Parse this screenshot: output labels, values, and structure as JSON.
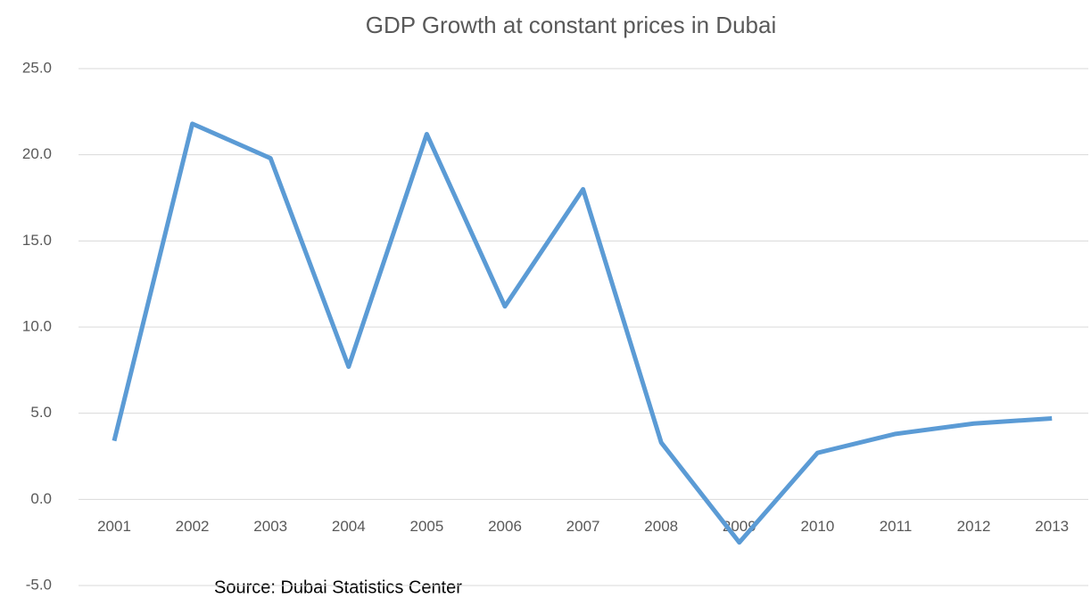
{
  "chart_data": {
    "type": "line",
    "title": "GDP Growth at constant prices in Dubai",
    "annotation": "Source: Dubai Statistics Center",
    "categories": [
      "2001",
      "2002",
      "2003",
      "2004",
      "2005",
      "2006",
      "2007",
      "2008",
      "2009",
      "2010",
      "2011",
      "2012",
      "2013"
    ],
    "series": [
      {
        "name": "GDP Growth",
        "color": "#5b9bd5",
        "values": [
          3.4,
          21.8,
          19.8,
          7.7,
          21.2,
          11.2,
          18.0,
          3.3,
          -2.5,
          2.7,
          3.8,
          4.4,
          4.7
        ]
      }
    ],
    "ylim": [
      -5,
      25
    ],
    "yticks": [
      {
        "value": -5,
        "label": "-5.0"
      },
      {
        "value": 0,
        "label": "0.0"
      },
      {
        "value": 5,
        "label": "5.0"
      },
      {
        "value": 10,
        "label": "10.0"
      },
      {
        "value": 15,
        "label": "15.0"
      },
      {
        "value": 20,
        "label": "20.0"
      },
      {
        "value": 25,
        "label": "25.0"
      }
    ],
    "grid": true,
    "legend": false
  }
}
